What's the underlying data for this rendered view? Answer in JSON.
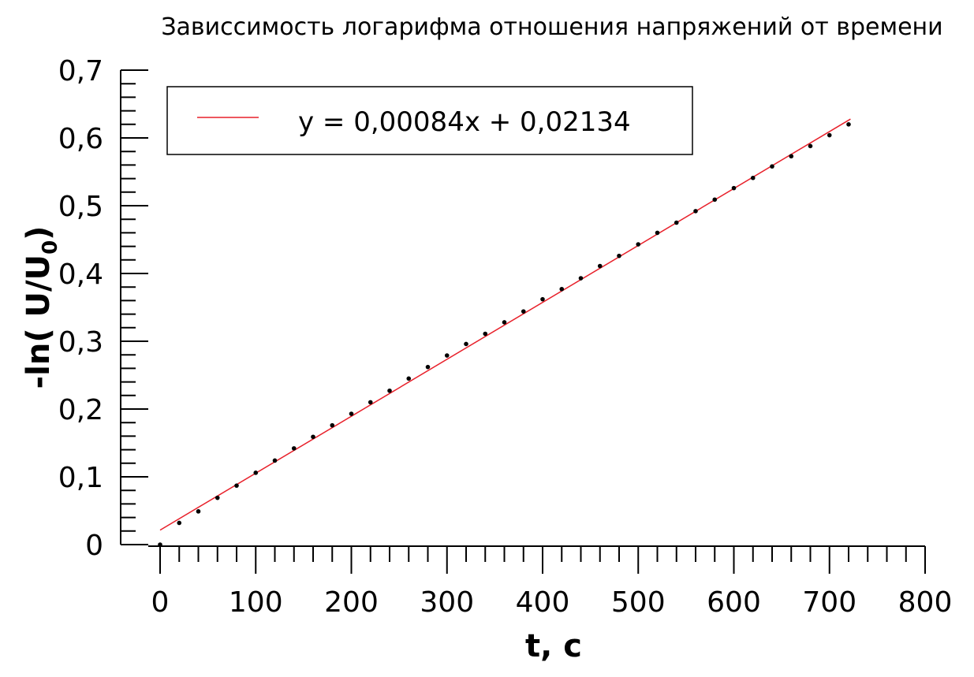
{
  "chart_data": {
    "type": "scatter",
    "title": "Зависсимость логарифма отношения напряжений от времени",
    "xlabel": "t, c",
    "ylabel": "-ln( U/U",
    "ylabel_subscript": "0",
    "ylabel_suffix": ")",
    "xlim": [
      0,
      800
    ],
    "ylim": [
      0,
      0.7
    ],
    "x_ticks": [
      0,
      100,
      200,
      300,
      400,
      500,
      600,
      700,
      800
    ],
    "x_tick_labels": [
      "0",
      "100",
      "200",
      "300",
      "400",
      "500",
      "600",
      "700",
      "800"
    ],
    "y_ticks": [
      0,
      0.1,
      0.2,
      0.3,
      0.4,
      0.5,
      0.6,
      0.7
    ],
    "y_tick_labels": [
      "0",
      "0,1",
      "0,2",
      "0,3",
      "0,4",
      "0,5",
      "0,6",
      "0,7"
    ],
    "grid": false,
    "legend_position": "top-left",
    "series": [
      {
        "kind": "points",
        "color": "#000000",
        "x": [
          0,
          20,
          40,
          60,
          80,
          100,
          120,
          140,
          160,
          180,
          200,
          220,
          240,
          260,
          280,
          300,
          320,
          340,
          360,
          380,
          400,
          420,
          440,
          460,
          480,
          500,
          520,
          540,
          560,
          580,
          600,
          620,
          640,
          660,
          680,
          700,
          720
        ],
        "y": [
          0.0,
          0.032,
          0.049,
          0.069,
          0.087,
          0.106,
          0.124,
          0.142,
          0.159,
          0.176,
          0.193,
          0.21,
          0.227,
          0.245,
          0.262,
          0.279,
          0.296,
          0.311,
          0.328,
          0.344,
          0.362,
          0.377,
          0.393,
          0.411,
          0.426,
          0.443,
          0.46,
          0.475,
          0.492,
          0.509,
          0.526,
          0.541,
          0.558,
          0.573,
          0.588,
          0.604,
          0.62
        ]
      },
      {
        "kind": "fit-line",
        "name": "y = 0,00084x + 0,02134",
        "color": "#e8202a",
        "slope": 0.00084,
        "intercept": 0.02134,
        "x_range": [
          0,
          722
        ]
      }
    ]
  }
}
